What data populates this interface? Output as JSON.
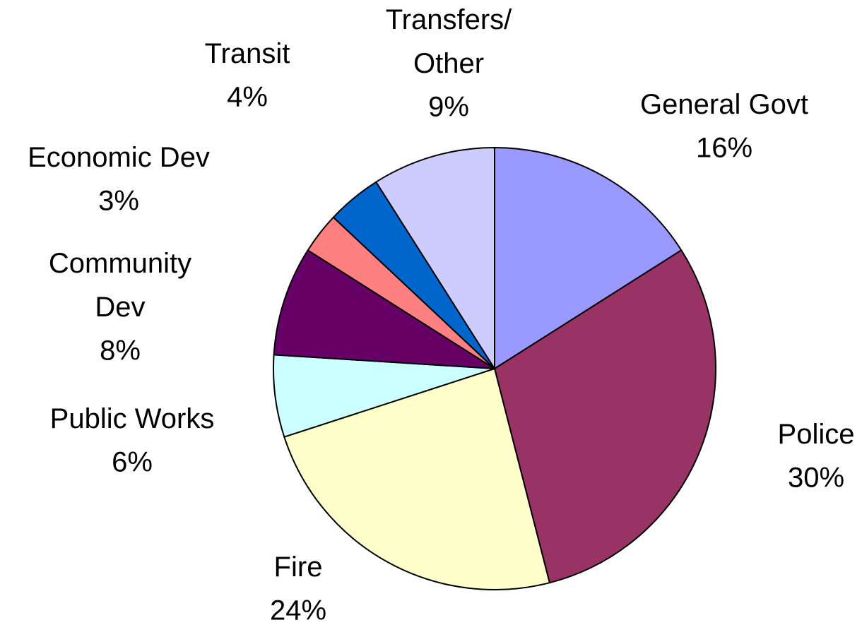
{
  "chart_data": {
    "type": "pie",
    "categories": [
      "General Govt",
      "Police",
      "Fire",
      "Public Works",
      "Community\nDev",
      "Economic Dev",
      "Transit",
      "Transfers/\nOther"
    ],
    "values": [
      16,
      30,
      24,
      6,
      8,
      3,
      4,
      9
    ],
    "value_labels": [
      "16%",
      "30%",
      "24%",
      "6%",
      "8%",
      "3%",
      "4%",
      "9%"
    ],
    "colors": [
      "#9999ff",
      "#993366",
      "#ffffcc",
      "#ccffff",
      "#660066",
      "#ff8080",
      "#0066cc",
      "#ccccff"
    ]
  }
}
